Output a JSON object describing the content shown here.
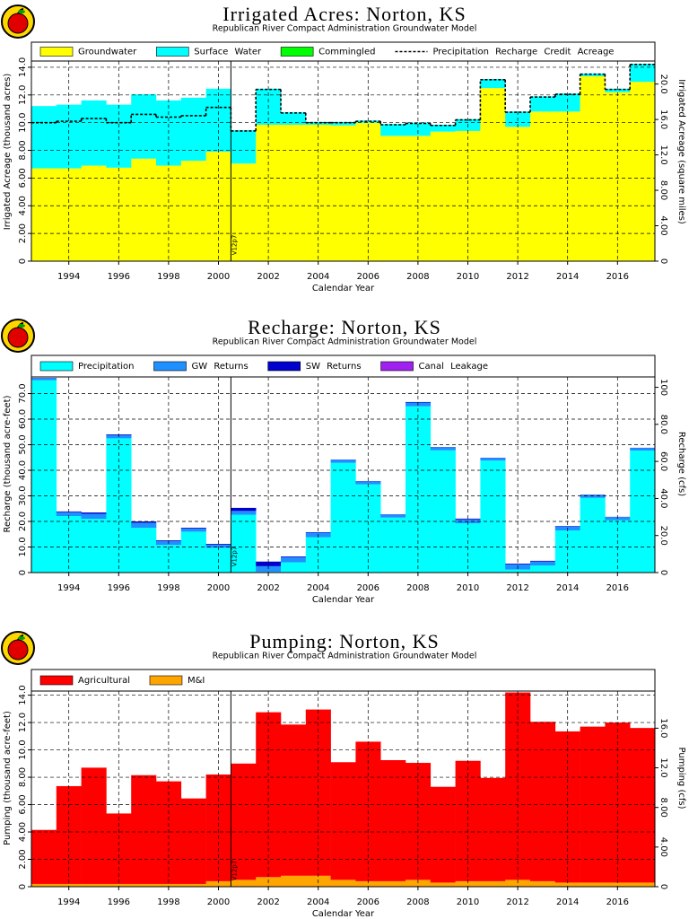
{
  "chart_data": [
    {
      "type": "bar",
      "stacked": true,
      "grid": true,
      "title": "Irrigated Acres: Norton, KS",
      "subtitle": "Republican River Compact Administration Groundwater Model",
      "xlabel": "Calendar Year",
      "ylabel": "Irrigated Acreage (thousand acres)",
      "y2label": "Irrigated Acreage (square miles)",
      "annotation": "V12p7",
      "categories": [
        null,
        1994,
        null,
        1996,
        null,
        1998,
        null,
        2000,
        null,
        2002,
        null,
        2004,
        null,
        2006,
        null,
        2008,
        null,
        2010,
        null,
        2012,
        null,
        2014,
        null,
        2016,
        null
      ],
      "series": [
        {
          "name": "Groundwater",
          "color": "#ffff00",
          "values": [
            6.7,
            6.7,
            6.9,
            6.75,
            7.4,
            6.9,
            7.25,
            7.9,
            7.05,
            9.85,
            9.85,
            9.85,
            9.8,
            10.0,
            9.05,
            9.05,
            9.35,
            9.4,
            12.5,
            9.7,
            10.8,
            10.8,
            13.35,
            12.2,
            12.95
          ]
        },
        {
          "name": "Surface Water",
          "color": "#00ffff",
          "values": [
            4.5,
            4.6,
            4.7,
            4.55,
            4.65,
            4.7,
            4.55,
            4.55,
            2.4,
            2.6,
            0.9,
            0.2,
            0.25,
            0.15,
            0.85,
            0.95,
            0.5,
            0.85,
            0.65,
            1.1,
            1.1,
            1.3,
            0.2,
            0.25,
            1.3
          ]
        },
        {
          "name": "Commingled",
          "color": "#00ff00",
          "values": [
            0,
            0,
            0,
            0,
            0,
            0,
            0,
            0,
            0,
            0,
            0,
            0,
            0,
            0,
            0,
            0,
            0,
            0,
            0,
            0,
            0,
            0,
            0,
            0,
            0
          ]
        },
        {
          "name": "Precipitation Recharge Credit Acreage",
          "type": "line",
          "style": "dashed",
          "color": "#000000",
          "values": [
            10.0,
            10.1,
            10.3,
            10.0,
            10.6,
            10.4,
            10.5,
            11.1,
            9.4,
            12.4,
            10.7,
            10.0,
            10.0,
            10.1,
            9.85,
            9.95,
            9.8,
            10.2,
            13.1,
            10.75,
            11.85,
            12.05,
            13.5,
            12.4,
            14.2
          ]
        }
      ],
      "ylim": [
        0,
        14.45
      ],
      "yticks": [
        0,
        {
          "value": 2,
          "label": "2.00"
        },
        {
          "value": 4,
          "label": "4.00"
        },
        {
          "value": 6,
          "label": "6.00"
        },
        {
          "value": 8,
          "label": "8.00"
        },
        {
          "value": 10,
          "label": "10.0"
        },
        {
          "value": 12,
          "label": "12.0"
        },
        {
          "value": 14,
          "label": "14.0"
        }
      ],
      "y2lim": [
        0,
        22.6
      ],
      "y2ticks": [
        0,
        {
          "value": 4,
          "label": "4.00"
        },
        {
          "value": 8,
          "label": "8.00"
        },
        {
          "value": 12,
          "label": "12.0"
        },
        {
          "value": 16,
          "label": "16.0"
        },
        {
          "value": 20,
          "label": "20.0"
        }
      ]
    },
    {
      "type": "bar",
      "stacked": true,
      "grid": true,
      "title": "Recharge: Norton, KS",
      "subtitle": "Republican River Compact Administration Groundwater Model",
      "xlabel": "Calendar Year",
      "ylabel": "Recharge (thousand acre-feet)",
      "y2label": "Recharge (cfs)",
      "annotation": "V12p7",
      "categories": [
        null,
        1994,
        null,
        1996,
        null,
        1998,
        null,
        2000,
        null,
        2002,
        null,
        2004,
        null,
        2006,
        null,
        2008,
        null,
        2010,
        null,
        2012,
        null,
        2014,
        null,
        2016,
        null
      ],
      "series": [
        {
          "name": "Precipitation",
          "color": "#00ffff",
          "values": [
            75.2,
            22.1,
            21.0,
            52.5,
            17.5,
            10.8,
            16.0,
            9.7,
            22.6,
            0.3,
            4.0,
            13.8,
            42.9,
            34.5,
            21.5,
            65.0,
            47.8,
            19.3,
            43.8,
            1.2,
            2.8,
            16.5,
            29.2,
            20.5,
            47.7
          ]
        },
        {
          "name": "GW Returns",
          "color": "#1e90ff",
          "values": [
            0.8,
            1.5,
            2.0,
            1.2,
            2.0,
            1.5,
            1.2,
            1.2,
            1.5,
            2.2,
            2.0,
            1.8,
            1.2,
            1.2,
            1.2,
            1.5,
            1.2,
            1.5,
            1.0,
            2.0,
            1.5,
            1.5,
            1.2,
            1.2,
            1.0
          ]
        },
        {
          "name": "SW Returns",
          "color": "#0000cd",
          "values": [
            0.1,
            0.3,
            0.5,
            0.3,
            0.5,
            0.3,
            0.3,
            0.3,
            1.2,
            1.8,
            0.3,
            0.2,
            0.1,
            0.1,
            0.1,
            0.2,
            0.1,
            0.3,
            0.1,
            0.3,
            0.3,
            0.2,
            0.1,
            0.1,
            0.1
          ]
        },
        {
          "name": "Canal Leakage",
          "color": "#a020f0",
          "values": [
            0,
            0,
            0,
            0,
            0,
            0,
            0,
            0,
            0,
            0,
            0,
            0,
            0,
            0,
            0,
            0,
            0,
            0,
            0,
            0,
            0,
            0,
            0,
            0,
            0
          ]
        }
      ],
      "ylim": [
        0,
        76.5
      ],
      "yticks": [
        0,
        {
          "value": 10,
          "label": "10.0"
        },
        {
          "value": 20,
          "label": "20.0"
        },
        {
          "value": 30,
          "label": "30.0"
        },
        {
          "value": 40,
          "label": "40.0"
        },
        {
          "value": 50,
          "label": "50.0"
        },
        {
          "value": 60,
          "label": "60.0"
        },
        {
          "value": 70,
          "label": "70.0"
        }
      ],
      "y2lim": [
        0,
        105.6
      ],
      "y2ticks": [
        0,
        {
          "value": 20,
          "label": "20.0"
        },
        {
          "value": 40,
          "label": "40.0"
        },
        {
          "value": 60,
          "label": "60.0"
        },
        {
          "value": 80,
          "label": "80.0"
        },
        100
      ]
    },
    {
      "type": "bar",
      "stacked": true,
      "grid": true,
      "title": "Pumping: Norton, KS",
      "subtitle": "Republican River Compact Administration Groundwater Model",
      "xlabel": "Calendar Year",
      "ylabel": "Pumping (thousand acre-feet)",
      "y2label": "Pumping (cfs)",
      "annotation": "V12p7",
      "categories": [
        null,
        1994,
        null,
        1996,
        null,
        1998,
        null,
        2000,
        null,
        2002,
        null,
        2004,
        null,
        2006,
        null,
        2008,
        null,
        2010,
        null,
        2012,
        null,
        2014,
        null,
        2016,
        null
      ],
      "series": [
        {
          "name": "M&I",
          "color": "#ffa500",
          "values": [
            0.2,
            0.2,
            0.2,
            0.2,
            0.2,
            0.2,
            0.2,
            0.4,
            0.5,
            0.7,
            0.8,
            0.8,
            0.5,
            0.4,
            0.4,
            0.5,
            0.3,
            0.4,
            0.4,
            0.5,
            0.4,
            0.3,
            0.3,
            0.3,
            0.3
          ]
        },
        {
          "name": "Agricultural",
          "color": "#ff0000",
          "values": [
            3.95,
            7.15,
            8.5,
            5.15,
            7.95,
            7.5,
            6.25,
            7.8,
            8.5,
            12.05,
            11.05,
            12.15,
            8.6,
            10.2,
            8.85,
            8.55,
            7.0,
            8.8,
            7.55,
            13.7,
            11.65,
            11.05,
            11.4,
            11.7,
            11.3
          ]
        }
      ],
      "legend_order": [
        1,
        0
      ],
      "ylim": [
        0,
        14.3
      ],
      "yticks": [
        0,
        {
          "value": 2,
          "label": "2.00"
        },
        {
          "value": 4,
          "label": "4.00"
        },
        {
          "value": 6,
          "label": "6.00"
        },
        {
          "value": 8,
          "label": "8.00"
        },
        {
          "value": 10,
          "label": "10.0"
        },
        {
          "value": 12,
          "label": "12.0"
        },
        {
          "value": 14,
          "label": "14.0"
        }
      ],
      "y2lim": [
        0,
        19.75
      ],
      "y2ticks": [
        0,
        {
          "value": 4,
          "label": "4.00"
        },
        {
          "value": 8,
          "label": "8.00"
        },
        {
          "value": 12,
          "label": "12.0"
        },
        {
          "value": 16,
          "label": "16.0"
        }
      ]
    }
  ]
}
